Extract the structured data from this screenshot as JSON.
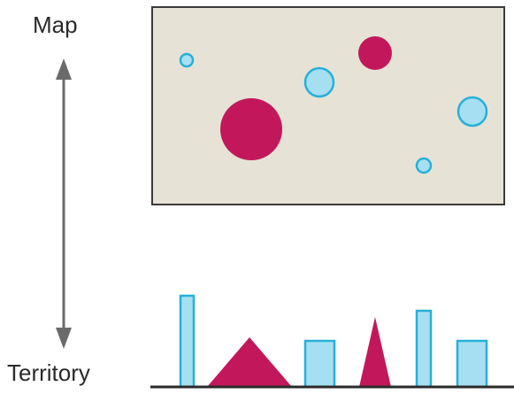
{
  "labels": {
    "top": "Map",
    "bottom": "Territory"
  },
  "colors": {
    "map_fill": "#e6e3d6",
    "map_border": "#3a3a3a",
    "magenta": "#c2185b",
    "magenta_dark": "#a5154f",
    "cyan_fill": "#a7dff2",
    "cyan_stroke": "#27b0d8",
    "arrow": "#6b6b6b",
    "ground_line": "#2a2a2a"
  },
  "icons": {
    "arrow": "double-headed-vertical-arrow"
  }
}
